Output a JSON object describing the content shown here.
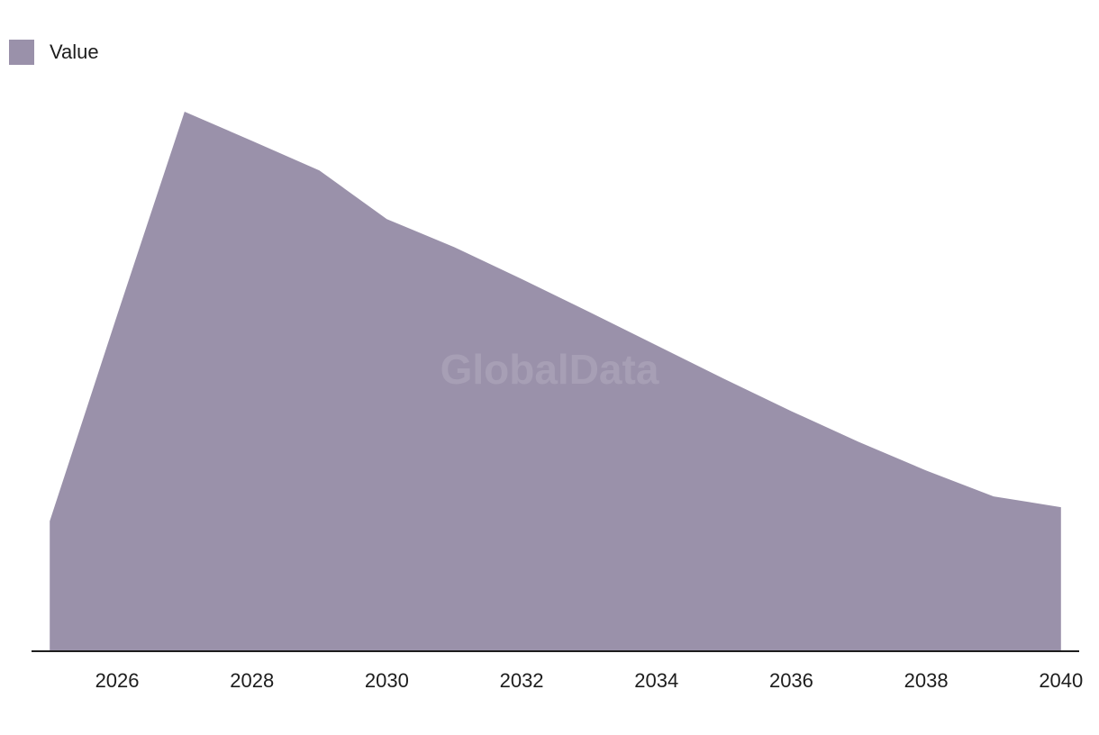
{
  "legend": {
    "label": "Value"
  },
  "watermark": "GlobalData",
  "colors": {
    "area": "#9a91aa",
    "axis": "#1d1d1d",
    "text": "#1d1d1d"
  },
  "chart_data": {
    "type": "area",
    "title": "",
    "xlabel": "",
    "ylabel": "",
    "x": [
      2025,
      2026,
      2027,
      2028,
      2029,
      2030,
      2031,
      2032,
      2033,
      2034,
      2035,
      2036,
      2037,
      2038,
      2039,
      2040
    ],
    "series": [
      {
        "name": "Value",
        "values": [
          24.1,
          62.3,
          100.0,
          94.6,
          89.1,
          80.1,
          74.9,
          69.0,
          62.9,
          56.7,
          50.5,
          44.5,
          38.8,
          33.5,
          28.7,
          26.7
        ]
      }
    ],
    "xticks": [
      2026,
      2028,
      2030,
      2032,
      2034,
      2036,
      2038,
      2040
    ],
    "xlim": [
      2024.73,
      2040.27
    ],
    "ylim": [
      0,
      100
    ],
    "y_axis_shown": false,
    "grid": false,
    "legend_position": "top-left"
  }
}
